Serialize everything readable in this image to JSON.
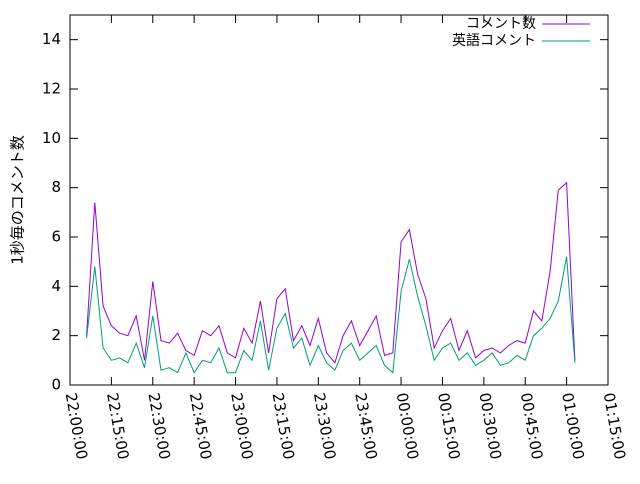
{
  "chart_data": {
    "type": "line",
    "y_label": "1秒毎のコメント数",
    "x": [
      "22:06:00",
      "22:09:00",
      "22:12:00",
      "22:15:00",
      "22:18:00",
      "22:21:00",
      "22:24:00",
      "22:27:00",
      "22:30:00",
      "22:33:00",
      "22:36:00",
      "22:39:00",
      "22:42:00",
      "22:45:00",
      "22:48:00",
      "22:51:00",
      "22:54:00",
      "22:57:00",
      "23:00:00",
      "23:03:00",
      "23:06:00",
      "23:09:00",
      "23:12:00",
      "23:15:00",
      "23:18:00",
      "23:21:00",
      "23:24:00",
      "23:27:00",
      "23:30:00",
      "23:33:00",
      "23:36:00",
      "23:39:00",
      "23:42:00",
      "23:45:00",
      "23:48:00",
      "23:51:00",
      "23:54:00",
      "23:57:00",
      "00:00:00",
      "00:03:00",
      "00:06:00",
      "00:09:00",
      "00:12:00",
      "00:15:00",
      "00:18:00",
      "00:21:00",
      "00:24:00",
      "00:27:00",
      "00:30:00",
      "00:33:00",
      "00:36:00",
      "00:39:00",
      "00:42:00",
      "00:45:00",
      "00:48:00",
      "00:51:00",
      "00:54:00",
      "00:57:00",
      "01:00:00",
      "01:03:00"
    ],
    "series": [
      {
        "name": "コメント数",
        "color": "#9400d3",
        "values": [
          2.0,
          7.4,
          3.2,
          2.4,
          2.1,
          2.0,
          2.8,
          1.0,
          4.2,
          1.8,
          1.7,
          2.1,
          1.4,
          1.2,
          2.2,
          2.0,
          2.4,
          1.3,
          1.1,
          2.3,
          1.7,
          3.4,
          1.3,
          3.5,
          3.9,
          1.8,
          2.4,
          1.6,
          2.7,
          1.3,
          0.9,
          2.0,
          2.6,
          1.6,
          2.2,
          2.8,
          1.2,
          1.3,
          5.8,
          6.3,
          4.5,
          3.5,
          1.5,
          2.2,
          2.7,
          1.4,
          2.2,
          1.1,
          1.4,
          1.5,
          1.3,
          1.6,
          1.8,
          1.7,
          3.0,
          2.6,
          4.6,
          7.9,
          8.2,
          1.0
        ]
      },
      {
        "name": "英語コメント",
        "color": "#009e73",
        "values": [
          1.9,
          4.8,
          1.5,
          1.0,
          1.1,
          0.9,
          1.7,
          0.7,
          2.8,
          0.6,
          0.7,
          0.5,
          1.3,
          0.5,
          1.0,
          0.9,
          1.5,
          0.5,
          0.5,
          1.4,
          1.0,
          2.6,
          0.6,
          2.3,
          2.9,
          1.5,
          1.9,
          0.8,
          1.6,
          0.9,
          0.6,
          1.4,
          1.7,
          1.0,
          1.3,
          1.6,
          0.8,
          0.5,
          3.8,
          5.1,
          3.6,
          2.4,
          1.0,
          1.5,
          1.7,
          1.0,
          1.3,
          0.8,
          1.0,
          1.3,
          0.8,
          0.9,
          1.2,
          1.0,
          2.0,
          2.3,
          2.7,
          3.4,
          5.2,
          0.9
        ]
      }
    ],
    "xlim": [
      "22:00:00",
      "01:15:00"
    ],
    "xticks": [
      "22:00:00",
      "22:15:00",
      "22:30:00",
      "22:45:00",
      "23:00:00",
      "23:15:00",
      "23:30:00",
      "23:45:00",
      "00:00:00",
      "00:15:00",
      "00:30:00",
      "00:45:00",
      "01:00:00",
      "01:15:00"
    ],
    "ylim": [
      0,
      15
    ],
    "yticks": [
      0,
      2,
      4,
      6,
      8,
      10,
      12,
      14
    ],
    "legend": "top-right"
  }
}
